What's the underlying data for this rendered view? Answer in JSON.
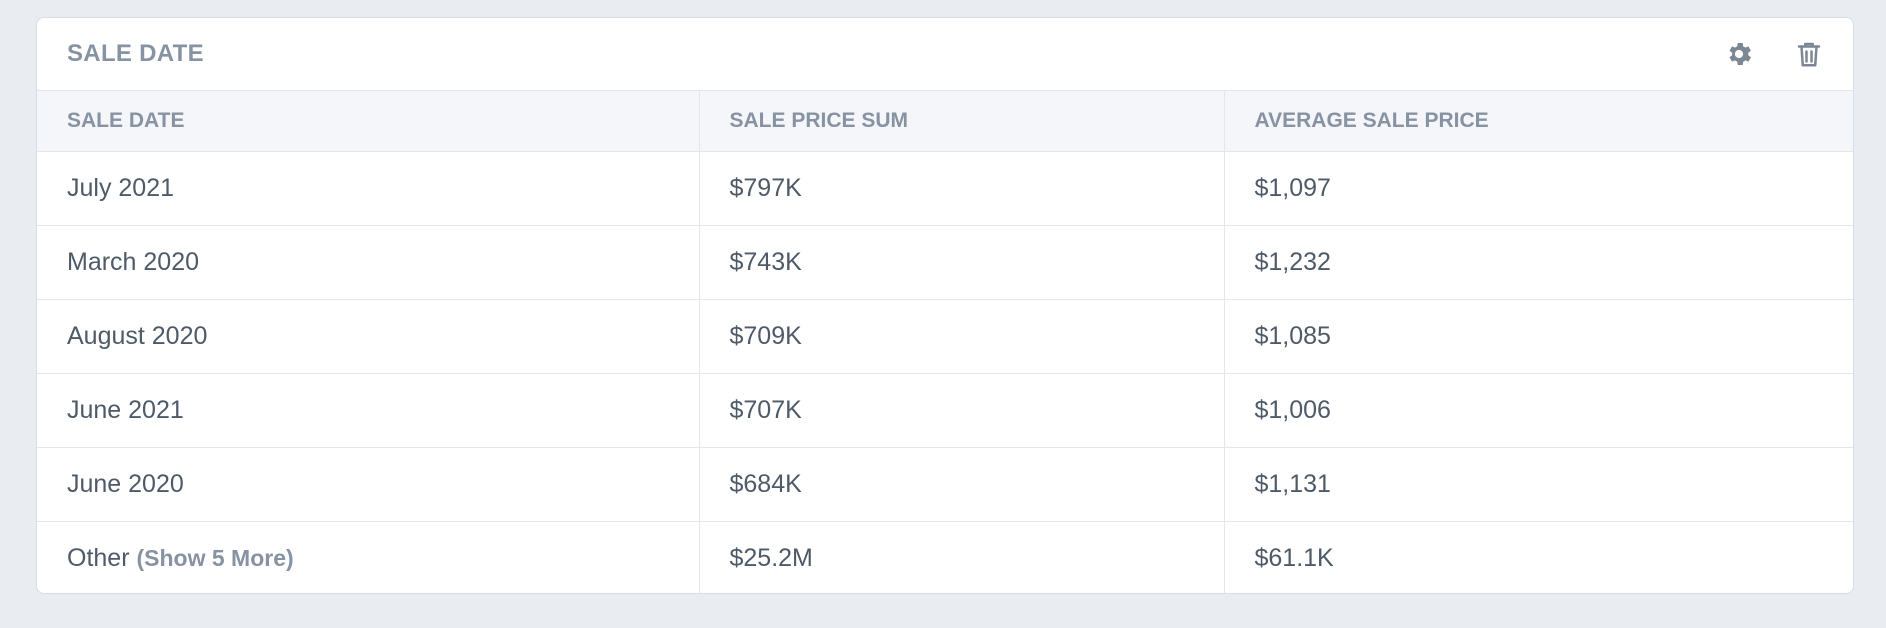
{
  "card": {
    "title": "SALE DATE",
    "icons": {
      "settings": "gear-icon",
      "delete": "trash-icon"
    }
  },
  "table": {
    "headers": [
      "SALE DATE",
      "SALE PRICE SUM",
      "AVERAGE SALE PRICE"
    ],
    "rows": [
      [
        "July 2021",
        "$797K",
        "$1,097"
      ],
      [
        "March 2020",
        "$743K",
        "$1,232"
      ],
      [
        "August 2020",
        "$709K",
        "$1,085"
      ],
      [
        "June 2021",
        "$707K",
        "$1,006"
      ],
      [
        "June 2020",
        "$684K",
        "$1,131"
      ]
    ],
    "other": {
      "label": "Other",
      "show_more": "(Show 5 More)",
      "sum": "$25.2M",
      "avg": "$61.1K"
    }
  },
  "colors": {
    "background": "#e9edf2",
    "header_text": "#8793a2",
    "cell_text": "#4e5a68",
    "border": "#e3e7ec"
  }
}
